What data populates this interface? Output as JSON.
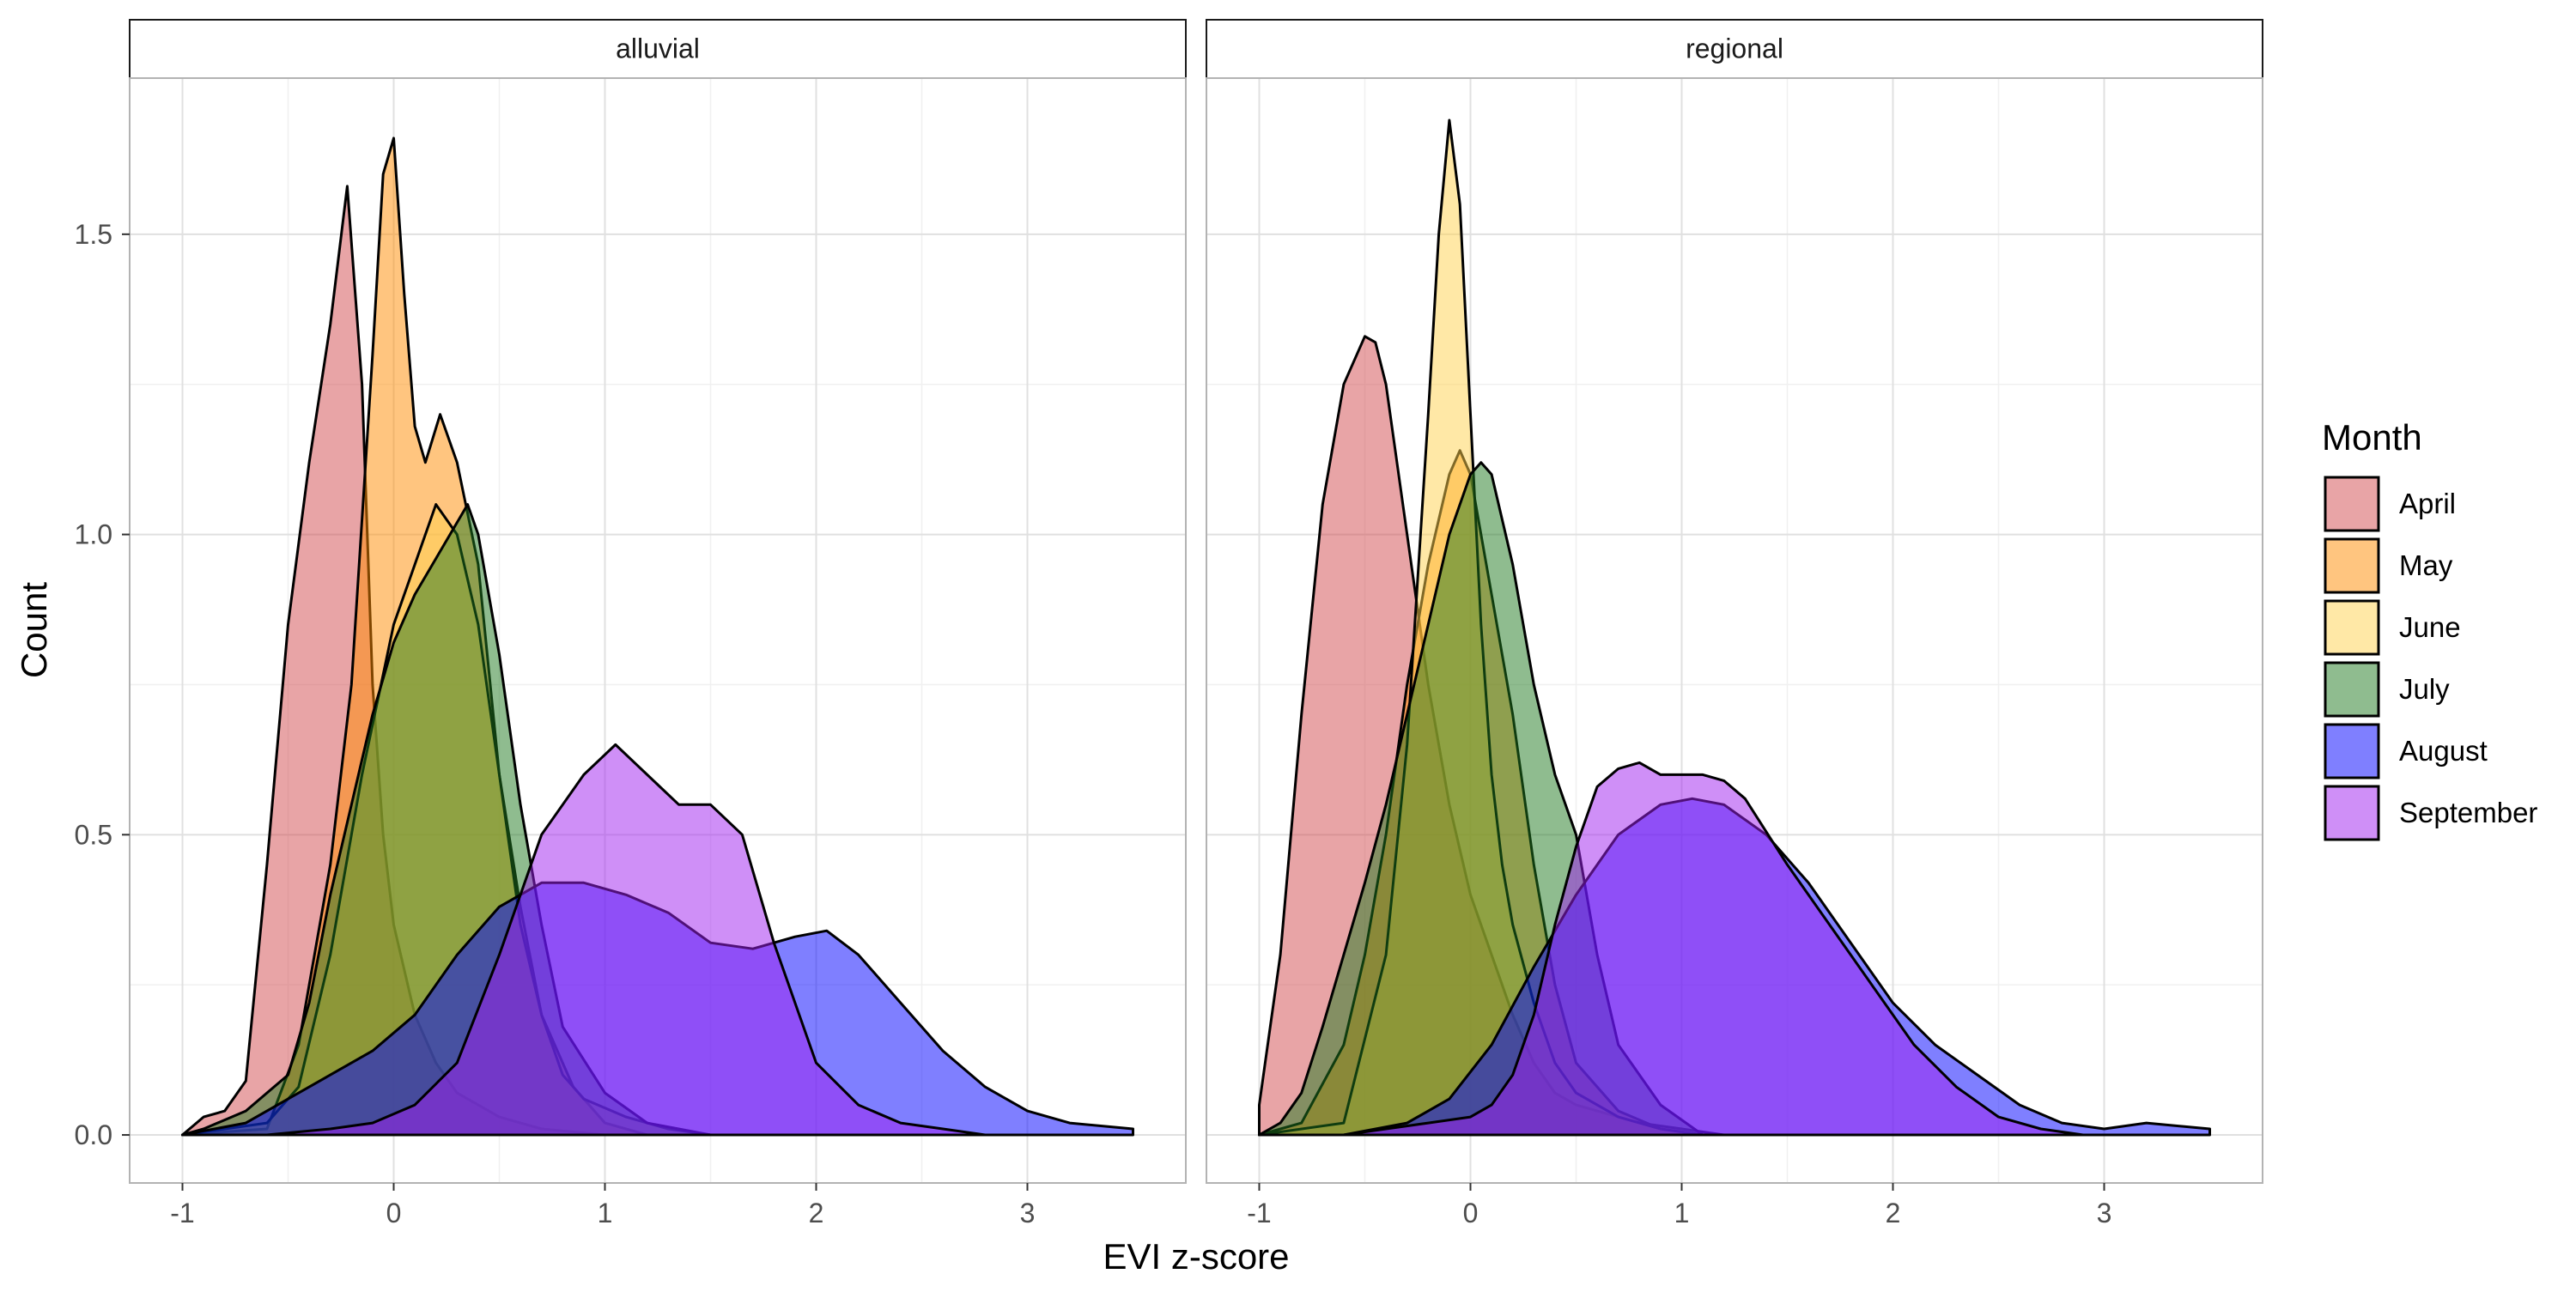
{
  "chart_data": {
    "type": "area",
    "chart_subtype": "density",
    "xlabel": "EVI z-score",
    "ylabel": "Count",
    "xlim": [
      -1.25,
      3.75
    ],
    "ylim": [
      -0.08,
      1.76
    ],
    "x_ticks": [
      -1,
      0,
      1,
      2,
      3
    ],
    "y_ticks": [
      0.0,
      0.5,
      1.0,
      1.5
    ],
    "x_tick_labels": [
      "-1",
      "0",
      "1",
      "2",
      "3"
    ],
    "y_tick_labels": [
      "0.0",
      "0.5",
      "1.0",
      "1.5"
    ],
    "grid": true,
    "legend": {
      "title": "Month",
      "position": "right",
      "entries": [
        {
          "label": "April",
          "color": "#d1494e"
        },
        {
          "label": "May",
          "color": "#ff8c00"
        },
        {
          "label": "June",
          "color": "#ffd24d"
        },
        {
          "label": "July",
          "color": "#1f7a1f"
        },
        {
          "label": "August",
          "color": "#0000ff"
        },
        {
          "label": "September",
          "color": "#9f1fef"
        }
      ]
    },
    "panels": [
      {
        "strip": "alluvial",
        "series": [
          {
            "name": "April",
            "x": [
              -1.0,
              -0.9,
              -0.8,
              -0.7,
              -0.6,
              -0.5,
              -0.4,
              -0.3,
              -0.22,
              -0.15,
              -0.1,
              -0.05,
              0.0,
              0.1,
              0.2,
              0.3,
              0.5,
              0.7,
              1.0,
              1.5
            ],
            "y": [
              0.0,
              0.03,
              0.04,
              0.09,
              0.45,
              0.85,
              1.12,
              1.35,
              1.58,
              1.25,
              0.75,
              0.5,
              0.35,
              0.2,
              0.12,
              0.07,
              0.03,
              0.01,
              0.0,
              0.0
            ]
          },
          {
            "name": "May",
            "x": [
              -1.0,
              -0.6,
              -0.45,
              -0.3,
              -0.2,
              -0.1,
              -0.05,
              0.0,
              0.05,
              0.1,
              0.15,
              0.22,
              0.3,
              0.4,
              0.5,
              0.6,
              0.7,
              0.85,
              1.0,
              1.2
            ],
            "y": [
              0.0,
              0.01,
              0.15,
              0.45,
              0.75,
              1.3,
              1.6,
              1.66,
              1.4,
              1.18,
              1.12,
              1.2,
              1.12,
              0.95,
              0.6,
              0.38,
              0.2,
              0.08,
              0.02,
              0.0
            ]
          },
          {
            "name": "June",
            "x": [
              -1.0,
              -0.6,
              -0.45,
              -0.3,
              -0.15,
              0.0,
              0.1,
              0.2,
              0.3,
              0.4,
              0.5,
              0.6,
              0.7,
              0.8,
              0.9,
              1.1,
              1.3,
              1.5
            ],
            "y": [
              0.0,
              0.02,
              0.08,
              0.3,
              0.6,
              0.85,
              0.95,
              1.05,
              1.0,
              0.85,
              0.6,
              0.35,
              0.2,
              0.1,
              0.06,
              0.03,
              0.01,
              0.0
            ]
          },
          {
            "name": "July",
            "x": [
              -1.0,
              -0.9,
              -0.7,
              -0.5,
              -0.4,
              -0.3,
              -0.2,
              -0.1,
              0.0,
              0.1,
              0.2,
              0.3,
              0.35,
              0.4,
              0.5,
              0.6,
              0.7,
              0.8,
              1.0,
              1.2,
              1.5
            ],
            "y": [
              0.0,
              0.01,
              0.04,
              0.1,
              0.22,
              0.4,
              0.55,
              0.7,
              0.82,
              0.9,
              0.96,
              1.02,
              1.05,
              1.0,
              0.8,
              0.55,
              0.35,
              0.18,
              0.07,
              0.02,
              0.0
            ]
          },
          {
            "name": "August",
            "x": [
              -1.0,
              -0.7,
              -0.5,
              -0.3,
              -0.1,
              0.1,
              0.3,
              0.5,
              0.7,
              0.9,
              1.1,
              1.3,
              1.5,
              1.7,
              1.9,
              2.05,
              2.2,
              2.4,
              2.6,
              2.8,
              3.0,
              3.2,
              3.5
            ],
            "y": [
              0.0,
              0.02,
              0.06,
              0.1,
              0.14,
              0.2,
              0.3,
              0.38,
              0.42,
              0.42,
              0.4,
              0.37,
              0.32,
              0.31,
              0.33,
              0.34,
              0.3,
              0.22,
              0.14,
              0.08,
              0.04,
              0.02,
              0.01
            ]
          },
          {
            "name": "September",
            "x": [
              -1.0,
              -0.6,
              -0.3,
              -0.1,
              0.1,
              0.3,
              0.5,
              0.7,
              0.9,
              1.05,
              1.2,
              1.35,
              1.5,
              1.65,
              1.8,
              2.0,
              2.2,
              2.4,
              2.6,
              2.8,
              3.0
            ],
            "y": [
              0.0,
              0.0,
              0.01,
              0.02,
              0.05,
              0.12,
              0.3,
              0.5,
              0.6,
              0.65,
              0.6,
              0.55,
              0.55,
              0.5,
              0.32,
              0.12,
              0.05,
              0.02,
              0.01,
              0.0,
              0.0
            ]
          }
        ]
      },
      {
        "strip": "regional",
        "series": [
          {
            "name": "April",
            "x": [
              -1.0,
              -0.9,
              -0.8,
              -0.7,
              -0.6,
              -0.5,
              -0.45,
              -0.4,
              -0.3,
              -0.2,
              -0.1,
              0.0,
              0.1,
              0.2,
              0.3,
              0.4,
              0.5,
              0.6,
              0.8,
              1.0,
              1.2
            ],
            "y": [
              0.05,
              0.3,
              0.7,
              1.05,
              1.25,
              1.33,
              1.32,
              1.25,
              1.0,
              0.75,
              0.55,
              0.4,
              0.3,
              0.2,
              0.12,
              0.07,
              0.05,
              0.04,
              0.02,
              0.01,
              0.0
            ]
          },
          {
            "name": "May",
            "x": [
              -1.0,
              -0.8,
              -0.6,
              -0.5,
              -0.4,
              -0.3,
              -0.2,
              -0.1,
              -0.05,
              0.0,
              0.1,
              0.2,
              0.3,
              0.4,
              0.5,
              0.7,
              0.9,
              1.1
            ],
            "y": [
              0.0,
              0.02,
              0.15,
              0.3,
              0.5,
              0.75,
              0.95,
              1.1,
              1.14,
              1.1,
              0.9,
              0.7,
              0.45,
              0.25,
              0.12,
              0.04,
              0.01,
              0.0
            ]
          },
          {
            "name": "June",
            "x": [
              -1.0,
              -0.6,
              -0.4,
              -0.3,
              -0.2,
              -0.15,
              -0.1,
              -0.05,
              0.0,
              0.05,
              0.1,
              0.15,
              0.2,
              0.3,
              0.4,
              0.5,
              0.7,
              0.9,
              1.1
            ],
            "y": [
              0.0,
              0.02,
              0.3,
              0.65,
              1.2,
              1.5,
              1.69,
              1.55,
              1.2,
              0.85,
              0.6,
              0.45,
              0.35,
              0.22,
              0.12,
              0.07,
              0.03,
              0.01,
              0.0
            ]
          },
          {
            "name": "July",
            "x": [
              -1.0,
              -0.9,
              -0.8,
              -0.7,
              -0.6,
              -0.5,
              -0.4,
              -0.3,
              -0.2,
              -0.1,
              0.0,
              0.05,
              0.1,
              0.2,
              0.3,
              0.4,
              0.5,
              0.6,
              0.7,
              0.9,
              1.1
            ],
            "y": [
              0.0,
              0.02,
              0.07,
              0.18,
              0.3,
              0.42,
              0.55,
              0.7,
              0.85,
              1.0,
              1.1,
              1.12,
              1.1,
              0.95,
              0.75,
              0.6,
              0.5,
              0.3,
              0.15,
              0.05,
              0.0
            ]
          },
          {
            "name": "August",
            "x": [
              -1.0,
              -0.6,
              -0.3,
              -0.1,
              0.1,
              0.3,
              0.5,
              0.7,
              0.9,
              1.05,
              1.2,
              1.4,
              1.6,
              1.8,
              2.0,
              2.2,
              2.4,
              2.6,
              2.8,
              3.0,
              3.2,
              3.5
            ],
            "y": [
              0.0,
              0.0,
              0.02,
              0.06,
              0.15,
              0.28,
              0.4,
              0.5,
              0.55,
              0.56,
              0.55,
              0.5,
              0.42,
              0.32,
              0.22,
              0.15,
              0.1,
              0.05,
              0.02,
              0.01,
              0.02,
              0.01
            ]
          },
          {
            "name": "September",
            "x": [
              -1.0,
              -0.6,
              -0.4,
              -0.2,
              0.0,
              0.1,
              0.2,
              0.3,
              0.4,
              0.5,
              0.6,
              0.7,
              0.8,
              0.9,
              1.0,
              1.1,
              1.2,
              1.3,
              1.5,
              1.7,
              1.9,
              2.1,
              2.3,
              2.5,
              2.7,
              2.9
            ],
            "y": [
              0.0,
              0.0,
              0.01,
              0.02,
              0.03,
              0.05,
              0.1,
              0.2,
              0.35,
              0.48,
              0.58,
              0.61,
              0.62,
              0.6,
              0.6,
              0.6,
              0.59,
              0.56,
              0.45,
              0.35,
              0.25,
              0.15,
              0.08,
              0.03,
              0.01,
              0.0
            ]
          }
        ]
      }
    ]
  }
}
